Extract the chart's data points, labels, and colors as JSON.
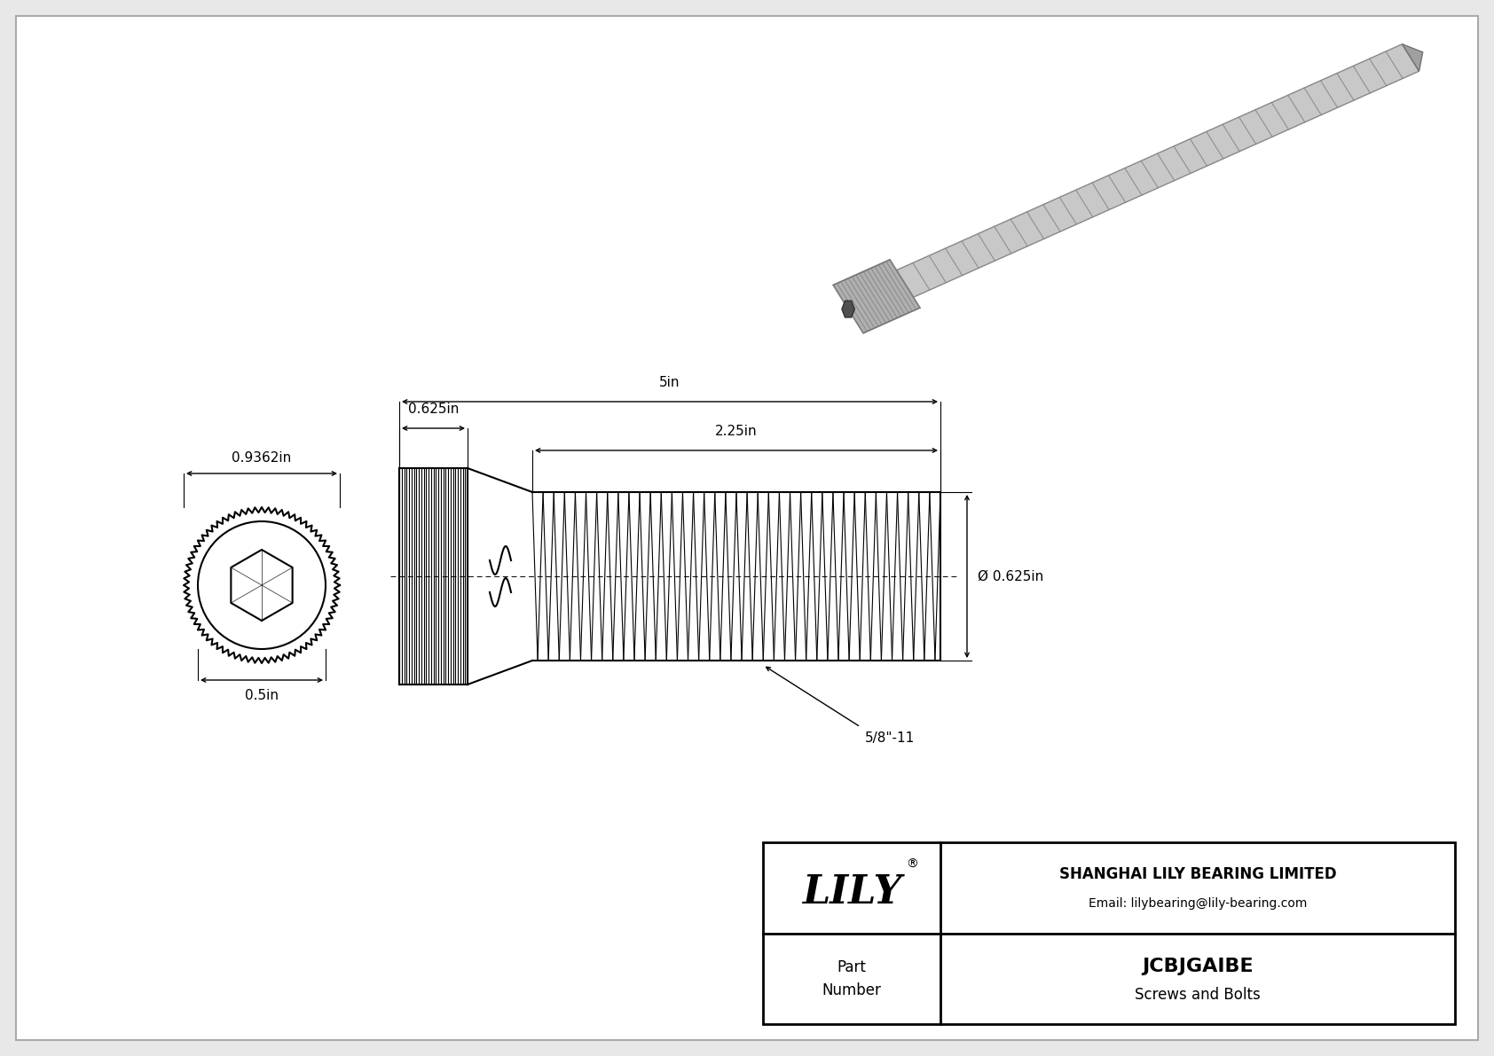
{
  "bg_color": "#e8e8e8",
  "drawing_bg": "#ffffff",
  "line_color": "#000000",
  "title": "JCBJGAIBE",
  "subtitle": "Screws and Bolts",
  "company": "SHANGHAI LILY BEARING LIMITED",
  "email": "Email: lilybearing@lily-bearing.com",
  "part_label": "Part\nNumber",
  "dim_head_width": "0.9362in",
  "dim_head_height": "0.5in",
  "dim_body_len": "0.625in",
  "dim_total_len": "5in",
  "dim_thread_len": "2.25in",
  "dim_thread_dia": "Ø 0.625in",
  "dim_thread_label": "5/8\"-11"
}
